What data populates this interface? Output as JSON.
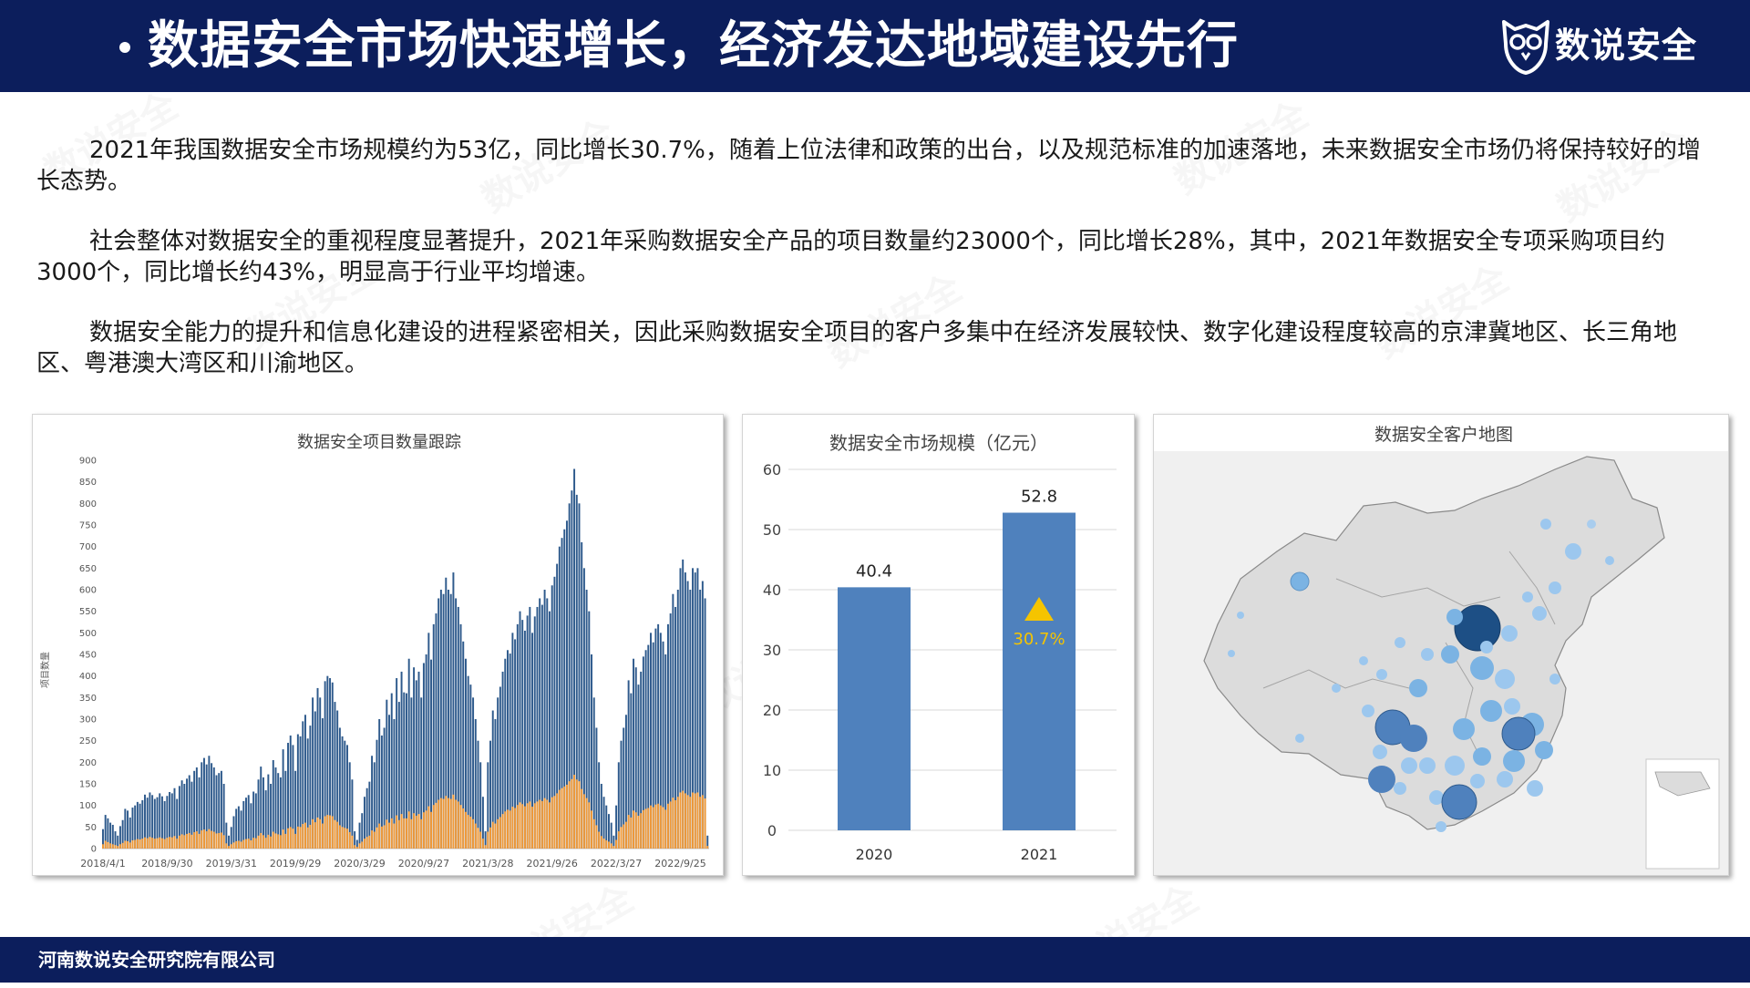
{
  "header": {
    "title": "数据安全市场快速增长，经济发达地域建设先行",
    "logo_text": "数说安全",
    "logo_icon": "owl-icon",
    "bg_color": "#0c1e5c"
  },
  "paragraphs": [
    "2021年我国数据安全市场规模约为53亿，同比增长30.7%，随着上位法律和政策的出台，以及规范标准的加速落地，未来数据安全市场仍将保持较好的增长态势。",
    "社会整体对数据安全的重视程度显著提升，2021年采购数据安全产品的项目数量约23000个，同比增长28%，其中，2021年数据安全专项采购项目约3000个，同比增长约43%，明显高于行业平均增速。",
    "数据安全能力的提升和信息化建设的进程紧密相关，因此采购数据安全项目的客户多集中在经济发展较快、数字化建设程度较高的京津冀地区、长三角地区、粤港澳大湾区和川渝地区。"
  ],
  "footer": {
    "company": "河南数说安全研究院有限公司"
  },
  "watermark": "数说安全",
  "map": {
    "title": "数据安全客户地图"
  },
  "chart_data": [
    {
      "type": "bar",
      "stacked": true,
      "title": "数据安全项目数量跟踪",
      "ylabel": "项目数量",
      "ylim": [
        0,
        900
      ],
      "yticks": [
        0,
        50,
        100,
        150,
        200,
        250,
        300,
        350,
        400,
        450,
        500,
        550,
        600,
        650,
        700,
        750,
        800,
        850,
        900
      ],
      "x_tick_labels": [
        "2018/4/1",
        "2018/9/30",
        "2019/3/31",
        "2019/9/29",
        "2020/3/29",
        "2020/9/27",
        "2021/3/28",
        "2021/9/26",
        "2022/3/27",
        "2022/9/25"
      ],
      "x_range": [
        "2018/4/1",
        "2022/10/2"
      ],
      "grid": false,
      "colors": {
        "total": "#2e5a8c",
        "special": "#f19a38"
      },
      "weekly_totals_by_half_year": [
        [
          45,
          78,
          70,
          60,
          55,
          40,
          30,
          52,
          66,
          92,
          88,
          72,
          95,
          100,
          108,
          104,
          112,
          125,
          118,
          130,
          124,
          115,
          119,
          128,
          121,
          110
        ],
        [
          122,
          131,
          128,
          140,
          115,
          145,
          158,
          150,
          162,
          170,
          155,
          180,
          188,
          165,
          200,
          210,
          195,
          215,
          198,
          188,
          170,
          175,
          180,
          150,
          60,
          30
        ],
        [
          50,
          75,
          92,
          98,
          88,
          110,
          118,
          124,
          105,
          132,
          128,
          160,
          190,
          165,
          135,
          172,
          150,
          205,
          188,
          175,
          165,
          230,
          180,
          245,
          262,
          240
        ],
        [
          180,
          265,
          260,
          295,
          310,
          255,
          285,
          350,
          318,
          372,
          350,
          302,
          388,
          400,
          395,
          385,
          340,
          320,
          280,
          260,
          250,
          240,
          200,
          160,
          40,
          20
        ],
        [
          60,
          82,
          120,
          140,
          155,
          215,
          200,
          252,
          300,
          262,
          280,
          345,
          310,
          360,
          300,
          395,
          340,
          410,
          362,
          360,
          440,
          350,
          420,
          390,
          410,
          350
        ],
        [
          430,
          450,
          500,
          438,
          520,
          545,
          580,
          600,
          590,
          628,
          600,
          590,
          640,
          580,
          560,
          520,
          480,
          440,
          400,
          380,
          350,
          300,
          250,
          200,
          120,
          40
        ],
        [
          200,
          250,
          320,
          300,
          350,
          375,
          410,
          440,
          460,
          452,
          500,
          485,
          520,
          550,
          530,
          505,
          540,
          560,
          500,
          538,
          560,
          580,
          565,
          600,
          580,
          550
        ],
        [
          610,
          630,
          660,
          700,
          720,
          740,
          760,
          800,
          830,
          880,
          820,
          800,
          710,
          650,
          600,
          550,
          450,
          350,
          280,
          200,
          150,
          120,
          100,
          80,
          60,
          30
        ],
        [
          100,
          200,
          250,
          280,
          310,
          390,
          360,
          440,
          420,
          380,
          410,
          445,
          460,
          472,
          500,
          478,
          510,
          520,
          500,
          480,
          450,
          520,
          545,
          590,
          560,
          600
        ],
        [
          650,
          670,
          640,
          620,
          600,
          650,
          640,
          650,
          600,
          620,
          580,
          30
        ]
      ],
      "weekly_special_by_half_year": [
        [
          10,
          18,
          15,
          12,
          10,
          8,
          6,
          10,
          13,
          18,
          17,
          14,
          19,
          20,
          22,
          21,
          23,
          26,
          24,
          27,
          25,
          23,
          24,
          26,
          24,
          22
        ],
        [
          25,
          27,
          26,
          29,
          23,
          30,
          33,
          31,
          34,
          36,
          32,
          38,
          40,
          34,
          42,
          44,
          40,
          45,
          41,
          39,
          35,
          36,
          37,
          31,
          12,
          6
        ],
        [
          10,
          14,
          17,
          18,
          16,
          20,
          22,
          23,
          19,
          25,
          24,
          30,
          36,
          31,
          25,
          32,
          28,
          39,
          35,
          33,
          31,
          44,
          34,
          47,
          50,
          46
        ],
        [
          34,
          51,
          50,
          57,
          60,
          49,
          55,
          68,
          61,
          72,
          68,
          58,
          75,
          78,
          77,
          75,
          66,
          62,
          54,
          50,
          48,
          46,
          38,
          30,
          8,
          4
        ],
        [
          12,
          16,
          23,
          27,
          30,
          42,
          39,
          49,
          58,
          51,
          54,
          67,
          60,
          70,
          58,
          77,
          66,
          80,
          70,
          70,
          86,
          68,
          82,
          76,
          80,
          68
        ],
        [
          84,
          88,
          98,
          85,
          101,
          106,
          113,
          117,
          115,
          122,
          117,
          115,
          125,
          113,
          109,
          101,
          93,
          85,
          78,
          74,
          68,
          58,
          48,
          39,
          23,
          8
        ],
        [
          39,
          49,
          62,
          58,
          68,
          73,
          80,
          86,
          90,
          88,
          97,
          94,
          101,
          107,
          103,
          98,
          105,
          109,
          97,
          105,
          109,
          113,
          110,
          117,
          113,
          107
        ],
        [
          119,
          122,
          128,
          136,
          140,
          144,
          148,
          156,
          161,
          171,
          160,
          156,
          138,
          126,
          117,
          107,
          88,
          68,
          54,
          39,
          29,
          23,
          19,
          16,
          12,
          6
        ],
        [
          20,
          40,
          50,
          56,
          62,
          78,
          72,
          88,
          84,
          76,
          82,
          89,
          92,
          94,
          100,
          96,
          102,
          104,
          100,
          96,
          90,
          104,
          109,
          118,
          112,
          120
        ],
        [
          130,
          134,
          128,
          124,
          120,
          130,
          128,
          130,
          120,
          124,
          116,
          6
        ]
      ]
    },
    {
      "type": "bar",
      "title": "数据安全市场规模（亿元）",
      "categories": [
        "2020",
        "2021"
      ],
      "values": [
        40.4,
        52.8
      ],
      "value_labels": [
        "40.4",
        "52.8"
      ],
      "ylim": [
        0,
        60
      ],
      "yticks": [
        0,
        10,
        20,
        30,
        40,
        50,
        60
      ],
      "growth_label": "30.7%",
      "growth_icon": "up-triangle-icon",
      "bar_color": "#4f81bd",
      "growth_color": "#f5c400",
      "grid": true
    }
  ]
}
